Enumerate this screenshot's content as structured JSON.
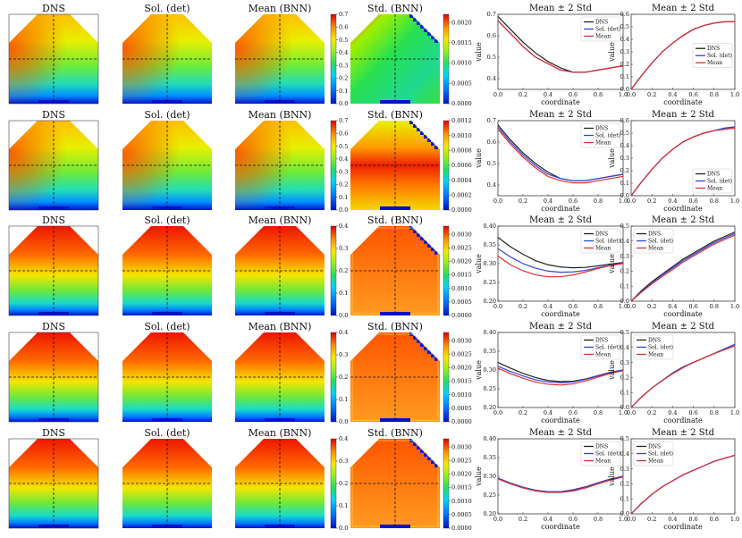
{
  "figure": {
    "map_titles": [
      "DNS",
      "Sol. (det)",
      "Mean (BNN)",
      "Std. (BNN)"
    ],
    "line_title": "Mean ± 2 Std",
    "xlabel": "coordinate",
    "ylabel": "value",
    "legend": [
      "DNS",
      "Sol. (det)",
      "Mean"
    ],
    "legend_colors": [
      "#222222",
      "#3344dd",
      "#e03030"
    ]
  },
  "chart_data": [
    {
      "type": "heatmap",
      "row": 1,
      "mean_colorbar": {
        "ticks": [
          "0.0",
          "0.1",
          "0.2",
          "0.3",
          "0.4",
          "0.5",
          "0.6",
          "0.7"
        ],
        "range": [
          0,
          0.7
        ]
      },
      "std_colorbar": {
        "ticks": [
          "0.0000",
          "0.0005",
          "0.0010",
          "0.0015",
          "0.0020"
        ],
        "range": [
          0,
          0.0022
        ]
      }
    },
    {
      "type": "line",
      "row": 1,
      "panel": "horizontal",
      "x": [
        0,
        0.1,
        0.2,
        0.3,
        0.4,
        0.5,
        0.6,
        0.7,
        0.8,
        0.9,
        1.0
      ],
      "xlim": [
        0,
        1
      ],
      "ylim": [
        0.35,
        0.7
      ],
      "yticks": [
        "0.4",
        "0.5",
        "0.6",
        "0.7"
      ],
      "xticks": [
        "0.0",
        "0.2",
        "0.4",
        "0.6",
        "0.8",
        "1.0"
      ],
      "legend_loc": "top-right",
      "series": [
        {
          "name": "DNS",
          "values": [
            0.69,
            0.63,
            0.57,
            0.52,
            0.48,
            0.45,
            0.43,
            0.43,
            0.44,
            0.45,
            0.46
          ]
        },
        {
          "name": "Sol. (det)",
          "values": [
            0.67,
            0.61,
            0.55,
            0.5,
            0.47,
            0.44,
            0.43,
            0.43,
            0.44,
            0.45,
            0.46
          ]
        },
        {
          "name": "Mean",
          "values": [
            0.67,
            0.61,
            0.55,
            0.5,
            0.47,
            0.44,
            0.43,
            0.43,
            0.44,
            0.45,
            0.46
          ]
        }
      ]
    },
    {
      "type": "line",
      "row": 1,
      "panel": "vertical",
      "x": [
        0,
        0.1,
        0.2,
        0.3,
        0.4,
        0.5,
        0.6,
        0.7,
        0.8,
        0.9,
        1.0
      ],
      "xlim": [
        0,
        1
      ],
      "ylim": [
        0,
        0.6
      ],
      "yticks": [
        "0.0",
        "0.1",
        "0.2",
        "0.3",
        "0.4",
        "0.5",
        "0.6"
      ],
      "xticks": [
        "0.0",
        "0.2",
        "0.4",
        "0.6",
        "0.8",
        "1.0"
      ],
      "legend_loc": "center-right",
      "series": [
        {
          "name": "DNS",
          "values": [
            0.0,
            0.11,
            0.21,
            0.3,
            0.37,
            0.43,
            0.48,
            0.51,
            0.53,
            0.54,
            0.54
          ]
        },
        {
          "name": "Sol. (det)",
          "values": [
            0.0,
            0.11,
            0.21,
            0.3,
            0.37,
            0.43,
            0.48,
            0.51,
            0.53,
            0.54,
            0.54
          ]
        },
        {
          "name": "Mean",
          "values": [
            0.0,
            0.11,
            0.21,
            0.3,
            0.37,
            0.43,
            0.48,
            0.51,
            0.53,
            0.54,
            0.54
          ]
        }
      ]
    },
    {
      "type": "heatmap",
      "row": 2,
      "mean_colorbar": {
        "ticks": [
          "0.0",
          "0.1",
          "0.2",
          "0.3",
          "0.4",
          "0.5",
          "0.6",
          "0.7"
        ],
        "range": [
          0,
          0.7
        ]
      },
      "std_colorbar": {
        "ticks": [
          "0.0000",
          "0.0002",
          "0.0004",
          "0.0006",
          "0.0008",
          "0.0010",
          "0.0012"
        ],
        "range": [
          0,
          0.0012
        ]
      }
    },
    {
      "type": "line",
      "row": 2,
      "panel": "horizontal",
      "x": [
        0,
        0.1,
        0.2,
        0.3,
        0.4,
        0.5,
        0.6,
        0.7,
        0.8,
        0.9,
        1.0
      ],
      "xlim": [
        0,
        1
      ],
      "ylim": [
        0.35,
        0.7
      ],
      "yticks": [
        "0.4",
        "0.5",
        "0.6",
        "0.7"
      ],
      "xticks": [
        "0.0",
        "0.2",
        "0.4",
        "0.6",
        "0.8",
        "1.0"
      ],
      "legend_loc": "top-right",
      "series": [
        {
          "name": "DNS",
          "values": [
            0.68,
            0.61,
            0.55,
            0.5,
            0.46,
            0.43,
            0.42,
            0.42,
            0.43,
            0.44,
            0.45
          ]
        },
        {
          "name": "Sol. (det)",
          "values": [
            0.67,
            0.6,
            0.54,
            0.49,
            0.45,
            0.43,
            0.42,
            0.42,
            0.43,
            0.44,
            0.45
          ]
        },
        {
          "name": "Mean",
          "values": [
            0.66,
            0.59,
            0.53,
            0.48,
            0.44,
            0.42,
            0.41,
            0.41,
            0.42,
            0.43,
            0.44
          ]
        }
      ]
    },
    {
      "type": "line",
      "row": 2,
      "panel": "vertical",
      "x": [
        0,
        0.1,
        0.2,
        0.3,
        0.4,
        0.5,
        0.6,
        0.7,
        0.8,
        0.9,
        1.0
      ],
      "xlim": [
        0,
        1
      ],
      "ylim": [
        0,
        0.6
      ],
      "yticks": [
        "0.0",
        "0.1",
        "0.2",
        "0.3",
        "0.4",
        "0.5",
        "0.6"
      ],
      "xticks": [
        "0.0",
        "0.2",
        "0.4",
        "0.6",
        "0.8",
        "1.0"
      ],
      "legend_loc": "bottom-right",
      "series": [
        {
          "name": "DNS",
          "values": [
            0.0,
            0.11,
            0.21,
            0.3,
            0.37,
            0.43,
            0.47,
            0.5,
            0.52,
            0.54,
            0.55
          ]
        },
        {
          "name": "Sol. (det)",
          "values": [
            0.0,
            0.11,
            0.21,
            0.3,
            0.37,
            0.43,
            0.47,
            0.5,
            0.52,
            0.54,
            0.55
          ]
        },
        {
          "name": "Mean",
          "values": [
            0.0,
            0.11,
            0.21,
            0.3,
            0.37,
            0.43,
            0.47,
            0.5,
            0.52,
            0.53,
            0.54
          ]
        }
      ]
    },
    {
      "type": "heatmap",
      "row": 3,
      "mean_colorbar": {
        "ticks": [
          "0.0",
          "0.1",
          "0.2",
          "0.3",
          "0.4"
        ],
        "range": [
          0,
          0.4
        ]
      },
      "std_colorbar": {
        "ticks": [
          "0.0000",
          "0.0005",
          "0.0010",
          "0.0015",
          "0.0020",
          "0.0025",
          "0.0030"
        ],
        "range": [
          0,
          0.0033
        ]
      }
    },
    {
      "type": "line",
      "row": 3,
      "panel": "horizontal",
      "x": [
        0,
        0.1,
        0.2,
        0.3,
        0.4,
        0.5,
        0.6,
        0.7,
        0.8,
        0.9,
        1.0
      ],
      "xlim": [
        0,
        1
      ],
      "ylim": [
        0.2,
        0.4
      ],
      "yticks": [
        "0.20",
        "0.25",
        "0.30",
        "0.35",
        "0.40"
      ],
      "xticks": [
        "0.0",
        "0.2",
        "0.4",
        "0.6",
        "0.8",
        "1.0"
      ],
      "legend_loc": "top-right",
      "series": [
        {
          "name": "DNS",
          "values": [
            0.37,
            0.345,
            0.325,
            0.308,
            0.297,
            0.291,
            0.289,
            0.29,
            0.294,
            0.299,
            0.303
          ]
        },
        {
          "name": "Sol. (det)",
          "values": [
            0.34,
            0.318,
            0.3,
            0.288,
            0.28,
            0.277,
            0.278,
            0.282,
            0.289,
            0.296,
            0.302
          ]
        },
        {
          "name": "Mean",
          "values": [
            0.32,
            0.297,
            0.281,
            0.27,
            0.265,
            0.265,
            0.27,
            0.278,
            0.287,
            0.295,
            0.3
          ]
        }
      ]
    },
    {
      "type": "line",
      "row": 3,
      "panel": "vertical",
      "x": [
        0,
        0.1,
        0.2,
        0.3,
        0.4,
        0.5,
        0.6,
        0.7,
        0.8,
        0.9,
        1.0
      ],
      "xlim": [
        0,
        1
      ],
      "ylim": [
        0,
        0.5
      ],
      "yticks": [
        "0.0",
        "0.1",
        "0.2",
        "0.3",
        "0.4",
        "0.5"
      ],
      "xticks": [
        "0.0",
        "0.2",
        "0.4",
        "0.6",
        "0.8",
        "1.0"
      ],
      "legend_loc": "top-left",
      "series": [
        {
          "name": "DNS",
          "values": [
            0.0,
            0.07,
            0.13,
            0.18,
            0.23,
            0.28,
            0.32,
            0.36,
            0.4,
            0.43,
            0.46
          ]
        },
        {
          "name": "Sol. (det)",
          "values": [
            0.0,
            0.065,
            0.12,
            0.175,
            0.22,
            0.27,
            0.31,
            0.35,
            0.39,
            0.42,
            0.45
          ]
        },
        {
          "name": "Mean",
          "values": [
            0.0,
            0.06,
            0.115,
            0.165,
            0.21,
            0.26,
            0.3,
            0.34,
            0.38,
            0.41,
            0.44
          ]
        }
      ]
    },
    {
      "type": "heatmap",
      "row": 4,
      "mean_colorbar": {
        "ticks": [
          "0.0",
          "0.1",
          "0.2",
          "0.3",
          "0.4"
        ],
        "range": [
          0,
          0.4
        ]
      },
      "std_colorbar": {
        "ticks": [
          "0.0000",
          "0.0005",
          "0.0010",
          "0.0015",
          "0.0020",
          "0.0025",
          "0.0030"
        ],
        "range": [
          0,
          0.0033
        ]
      }
    },
    {
      "type": "line",
      "row": 4,
      "panel": "horizontal",
      "x": [
        0,
        0.1,
        0.2,
        0.3,
        0.4,
        0.5,
        0.6,
        0.7,
        0.8,
        0.9,
        1.0
      ],
      "xlim": [
        0,
        1
      ],
      "ylim": [
        0.2,
        0.4
      ],
      "yticks": [
        "0.20",
        "0.25",
        "0.30",
        "0.35",
        "0.40"
      ],
      "xticks": [
        "0.0",
        "0.2",
        "0.4",
        "0.6",
        "0.8",
        "1.0"
      ],
      "legend_loc": "top-right",
      "series": [
        {
          "name": "DNS",
          "values": [
            0.32,
            0.305,
            0.291,
            0.28,
            0.272,
            0.269,
            0.27,
            0.276,
            0.285,
            0.294,
            0.3
          ]
        },
        {
          "name": "Sol. (det)",
          "values": [
            0.31,
            0.296,
            0.284,
            0.274,
            0.268,
            0.266,
            0.268,
            0.275,
            0.284,
            0.293,
            0.3
          ]
        },
        {
          "name": "Mean",
          "values": [
            0.305,
            0.29,
            0.278,
            0.268,
            0.262,
            0.26,
            0.263,
            0.271,
            0.281,
            0.291,
            0.298
          ]
        }
      ]
    },
    {
      "type": "line",
      "row": 4,
      "panel": "vertical",
      "x": [
        0,
        0.1,
        0.2,
        0.3,
        0.4,
        0.5,
        0.6,
        0.7,
        0.8,
        0.9,
        1.0
      ],
      "xlim": [
        0,
        1
      ],
      "ylim": [
        0,
        0.5
      ],
      "yticks": [
        "0.0",
        "0.1",
        "0.2",
        "0.3",
        "0.4",
        "0.5"
      ],
      "xticks": [
        "0.0",
        "0.2",
        "0.4",
        "0.6",
        "0.8",
        "1.0"
      ],
      "legend_loc": "top-left",
      "series": [
        {
          "name": "DNS",
          "values": [
            0.0,
            0.07,
            0.13,
            0.18,
            0.23,
            0.27,
            0.3,
            0.33,
            0.36,
            0.39,
            0.42
          ]
        },
        {
          "name": "Sol. (det)",
          "values": [
            0.0,
            0.07,
            0.13,
            0.18,
            0.23,
            0.27,
            0.3,
            0.33,
            0.36,
            0.39,
            0.42
          ]
        },
        {
          "name": "Mean",
          "values": [
            0.0,
            0.07,
            0.13,
            0.18,
            0.225,
            0.265,
            0.3,
            0.33,
            0.36,
            0.385,
            0.41
          ]
        }
      ]
    },
    {
      "type": "heatmap",
      "row": 5,
      "mean_colorbar": {
        "ticks": [
          "0.0",
          "0.1",
          "0.2",
          "0.3",
          "0.4"
        ],
        "range": [
          0,
          0.4
        ]
      },
      "std_colorbar": {
        "ticks": [
          "0.0000",
          "0.0005",
          "0.0010",
          "0.0015",
          "0.0020",
          "0.0025",
          "0.0030"
        ],
        "range": [
          0,
          0.0033
        ]
      }
    },
    {
      "type": "line",
      "row": 5,
      "panel": "horizontal",
      "x": [
        0,
        0.1,
        0.2,
        0.3,
        0.4,
        0.5,
        0.6,
        0.7,
        0.8,
        0.9,
        1.0
      ],
      "xlim": [
        0,
        1
      ],
      "ylim": [
        0.2,
        0.4
      ],
      "yticks": [
        "0.20",
        "0.25",
        "0.30",
        "0.35",
        "0.40"
      ],
      "xticks": [
        "0.0",
        "0.2",
        "0.4",
        "0.6",
        "0.8",
        "1.0"
      ],
      "legend_loc": "top-right",
      "series": [
        {
          "name": "DNS",
          "values": [
            0.295,
            0.282,
            0.271,
            0.263,
            0.259,
            0.259,
            0.264,
            0.272,
            0.283,
            0.293,
            0.3
          ]
        },
        {
          "name": "Sol. (det)",
          "values": [
            0.295,
            0.282,
            0.271,
            0.263,
            0.259,
            0.259,
            0.263,
            0.271,
            0.282,
            0.292,
            0.3
          ]
        },
        {
          "name": "Mean",
          "values": [
            0.293,
            0.28,
            0.269,
            0.261,
            0.257,
            0.257,
            0.261,
            0.269,
            0.28,
            0.29,
            0.298
          ]
        }
      ]
    },
    {
      "type": "line",
      "row": 5,
      "panel": "vertical",
      "x": [
        0,
        0.1,
        0.2,
        0.3,
        0.4,
        0.5,
        0.6,
        0.7,
        0.8,
        0.9,
        1.0
      ],
      "xlim": [
        0,
        1
      ],
      "ylim": [
        0,
        0.5
      ],
      "yticks": [
        "0.0",
        "0.1",
        "0.2",
        "0.3",
        "0.4",
        "0.5"
      ],
      "xticks": [
        "0.0",
        "0.2",
        "0.4",
        "0.6",
        "0.8",
        "1.0"
      ],
      "legend_loc": "top-left",
      "series": [
        {
          "name": "DNS",
          "values": [
            0.0,
            0.07,
            0.13,
            0.18,
            0.22,
            0.26,
            0.29,
            0.32,
            0.35,
            0.37,
            0.39
          ]
        },
        {
          "name": "Sol. (det)",
          "values": [
            0.0,
            0.07,
            0.13,
            0.18,
            0.22,
            0.26,
            0.29,
            0.32,
            0.35,
            0.37,
            0.39
          ]
        },
        {
          "name": "Mean",
          "values": [
            0.0,
            0.07,
            0.13,
            0.18,
            0.22,
            0.26,
            0.29,
            0.32,
            0.35,
            0.37,
            0.39
          ]
        }
      ]
    }
  ]
}
